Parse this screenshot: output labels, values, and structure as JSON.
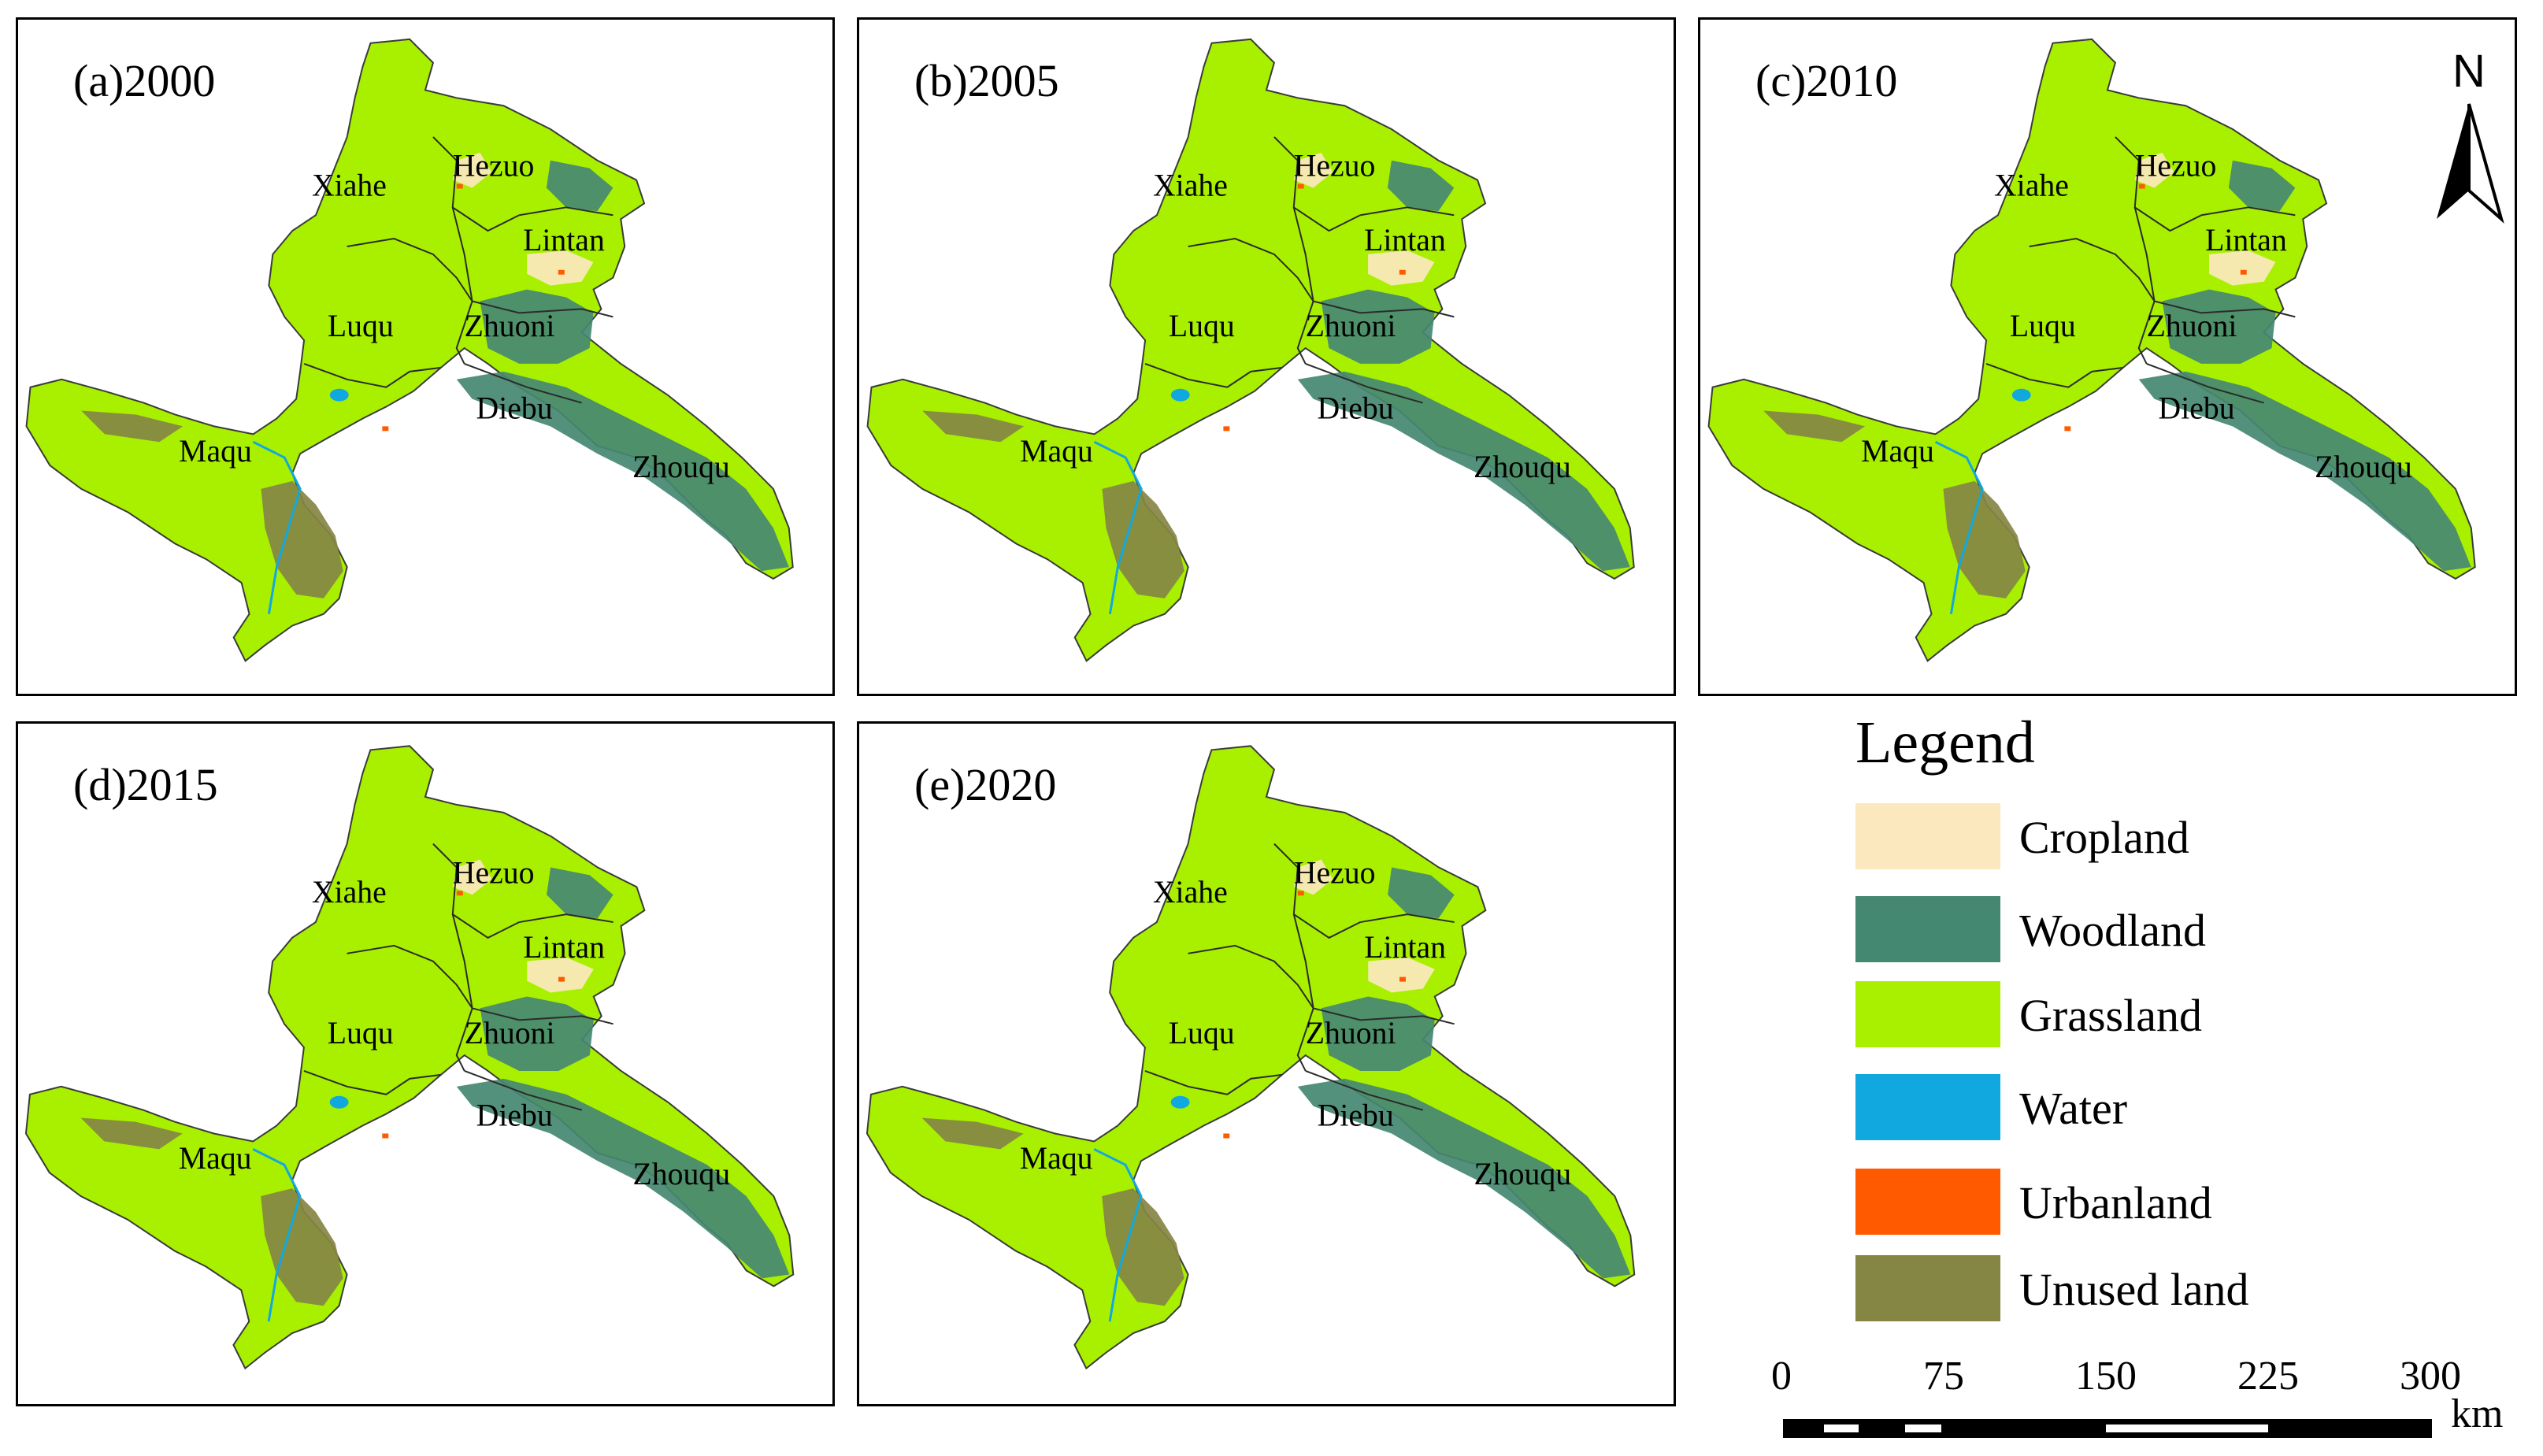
{
  "panels": [
    {
      "label": "(a)2000"
    },
    {
      "label": "(b)2005"
    },
    {
      "label": "(c)2010"
    },
    {
      "label": "(d)2015"
    },
    {
      "label": "(e)2020"
    }
  ],
  "places": [
    "Xiahe",
    "Hezuo",
    "Lintan",
    "Luqu",
    "Zhuoni",
    "Diebu",
    "Maqu",
    "Zhouqu"
  ],
  "north_arrow": {
    "label": "N"
  },
  "legend": {
    "title": "Legend",
    "items": [
      {
        "label": "Cropland",
        "color": "#fce8bf"
      },
      {
        "label": "Woodland",
        "color": "#458872"
      },
      {
        "label": "Grassland",
        "color": "#a8f000"
      },
      {
        "label": "Water",
        "color": "#11a8e0"
      },
      {
        "label": "Urbanland",
        "color": "#ff5a00"
      },
      {
        "label": "Unused land",
        "color": "#858544"
      }
    ]
  },
  "scale_bar": {
    "ticks": [
      "0",
      "75",
      "150",
      "225",
      "300"
    ],
    "unit": "km"
  }
}
